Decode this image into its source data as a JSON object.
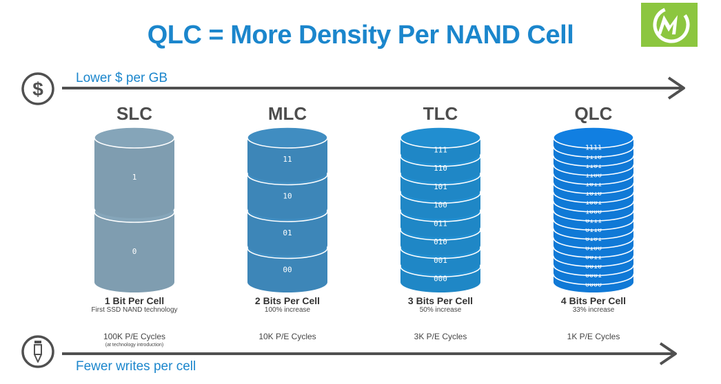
{
  "title": "QLC = More Density Per NAND Cell",
  "top_arrow": {
    "label": "Lower $ per GB",
    "icon": "dollar-icon"
  },
  "bottom_arrow": {
    "label": "Fewer writes per cell",
    "icon": "pencil-icon"
  },
  "logo": {
    "letter": "M",
    "color": "#8cc63f"
  },
  "colors": {
    "title": "#1b86cc",
    "arrow": "#505050",
    "slc": "#7f9db0",
    "mlc": "#3d86b8",
    "tlc": "#1f87c6",
    "qlc": "#1079d6"
  },
  "columns": [
    {
      "name": "SLC",
      "bits_label": "1 Bit Per Cell",
      "subtitle": "First SSD NAND technology",
      "cycles": "100K P/E Cycles",
      "note": "(at technology introduction)",
      "layers": [
        "1",
        "0"
      ]
    },
    {
      "name": "MLC",
      "bits_label": "2 Bits Per Cell",
      "subtitle": "100% increase",
      "cycles": "10K P/E Cycles",
      "note": "",
      "layers": [
        "11",
        "10",
        "01",
        "00"
      ]
    },
    {
      "name": "TLC",
      "bits_label": "3 Bits Per Cell",
      "subtitle": "50% increase",
      "cycles": "3K P/E Cycles",
      "note": "",
      "layers": [
        "111",
        "110",
        "101",
        "100",
        "011",
        "010",
        "001",
        "000"
      ]
    },
    {
      "name": "QLC",
      "bits_label": "4 Bits Per Cell",
      "subtitle": "33% increase",
      "cycles": "1K P/E Cycles",
      "note": "",
      "layers": [
        "1111",
        "1110",
        "1101",
        "1100",
        "1011",
        "1010",
        "1001",
        "1000",
        "0111",
        "0110",
        "0101",
        "0100",
        "0011",
        "0010",
        "0001",
        "0000"
      ]
    }
  ]
}
